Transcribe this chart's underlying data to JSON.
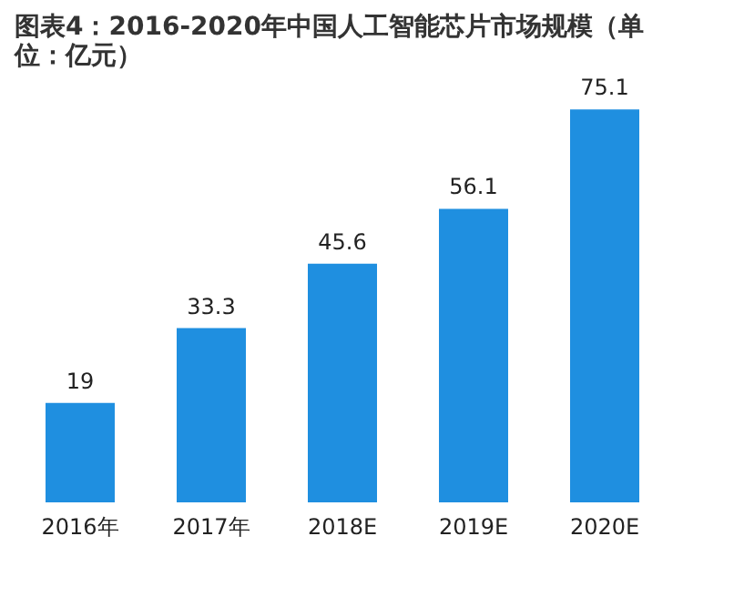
{
  "chart_data": {
    "type": "bar",
    "title": "图表4：2016-2020年中国人工智能芯片市场规模（单位：亿元）",
    "categories": [
      "2016年",
      "2017年",
      "2018E",
      "2019E",
      "2020E"
    ],
    "values": [
      19,
      33.3,
      45.6,
      56.1,
      75.1
    ],
    "color": "#1f8fe0",
    "data_labels": true
  }
}
